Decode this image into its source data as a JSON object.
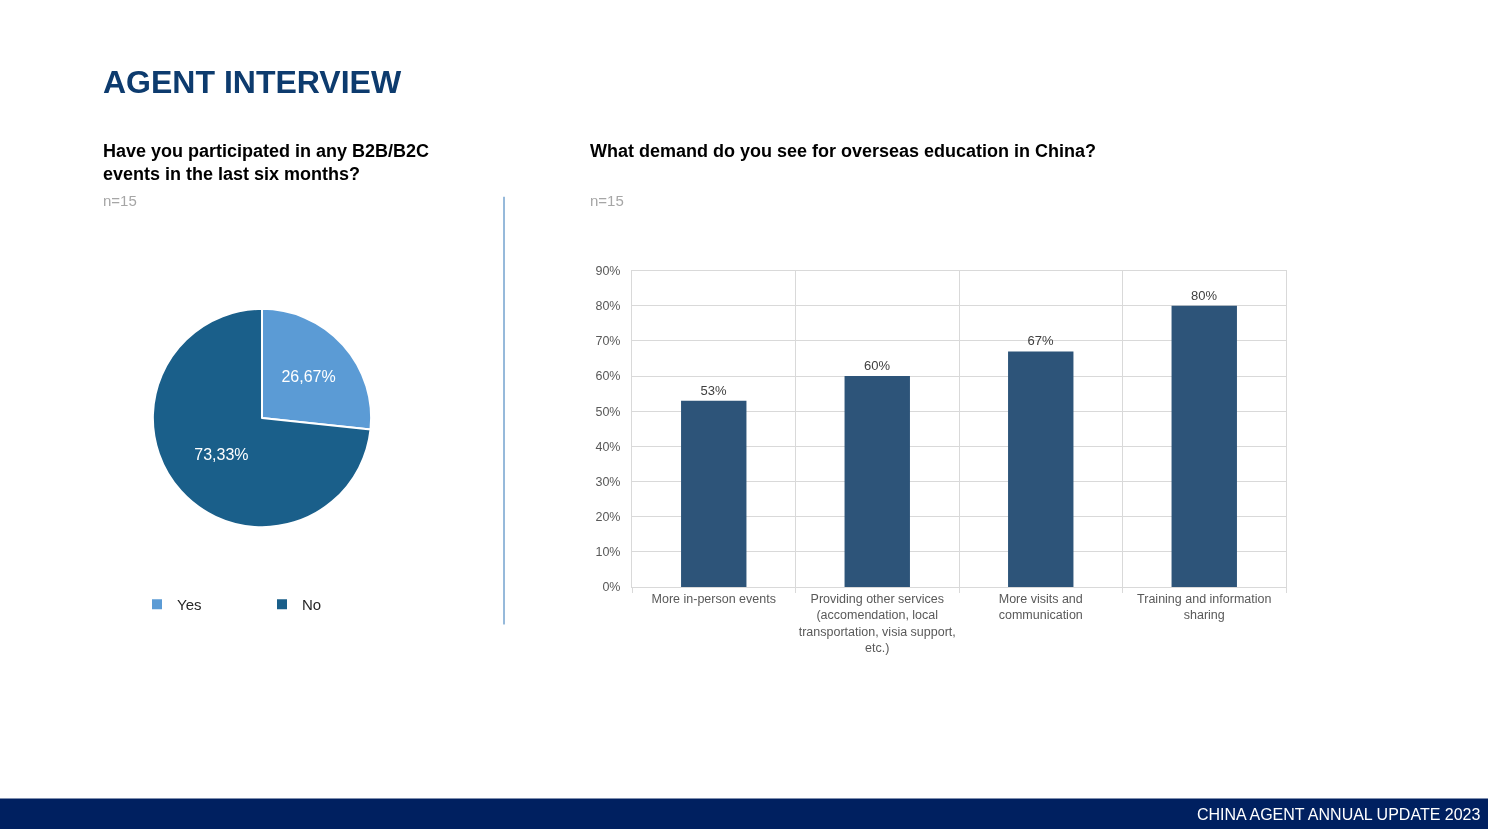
{
  "chart_data": [
    {
      "type": "pie",
      "title": "Have you participated in any B2B/B2C events in the last six months?",
      "subtitle": "n=15",
      "annotations": [
        "AGENT INTERVIEW"
      ],
      "categories": [
        "Yes",
        "No"
      ],
      "values": [
        26.67,
        73.33
      ],
      "colors": [
        "#5b9bd5",
        "#1a5f8a"
      ],
      "value_labels": [
        "26,67%",
        "73,33%"
      ],
      "legend": "bottom"
    },
    {
      "type": "bar",
      "title": "What demand do you see for overseas education in China?",
      "subtitle": "n=15",
      "annotations": [
        "CHINA AGENT ANNUAL UPDATE 2023"
      ],
      "categories": [
        "More in-person events",
        "Providing other services (accomendation, local transportation, visia support, etc.)",
        "More visits and communication",
        "Training and information sharing"
      ],
      "values": [
        53,
        60,
        67,
        80
      ],
      "color": "#2d5479",
      "value_labels": [
        "53%",
        "60%",
        "67%",
        "80%"
      ],
      "ylim": [
        0,
        90
      ],
      "yticks": [
        {
          "value": 0,
          "label": "0%"
        },
        {
          "value": 10,
          "label": "10%"
        },
        {
          "value": 20,
          "label": "20%"
        },
        {
          "value": 30,
          "label": "30%"
        },
        {
          "value": 40,
          "label": "40%"
        },
        {
          "value": 50,
          "label": "50%"
        },
        {
          "value": 60,
          "label": "60%"
        },
        {
          "value": 70,
          "label": "70%"
        },
        {
          "value": 80,
          "label": "80%"
        },
        {
          "value": 90,
          "label": "90%"
        }
      ],
      "grid": true
    }
  ]
}
